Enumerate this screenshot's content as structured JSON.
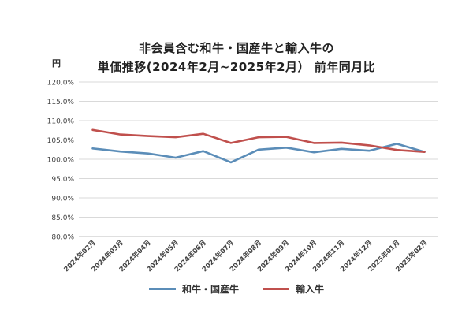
{
  "chart_data": {
    "type": "line",
    "title_lines": [
      "非会員含む和牛・国産牛と輸入牛の",
      "単価推移(2024年2月~2025年2月） 前年同月比"
    ],
    "unit_label": "円",
    "categories": [
      "2024年02月",
      "2024年03月",
      "2024年04月",
      "2024年05月",
      "2024年06月",
      "2024年07月",
      "2024年08月",
      "2024年09月",
      "2024年10月",
      "2024年11月",
      "2024年12月",
      "2025年01月",
      "2025年02月"
    ],
    "y_ticks": [
      "80.0%",
      "85.0%",
      "90.0%",
      "95.0%",
      "100.0%",
      "105.0%",
      "110.0%",
      "115.0%",
      "120.0%"
    ],
    "ylim": [
      80,
      120
    ],
    "grid": true,
    "legend_position": "bottom",
    "series": [
      {
        "name": "和牛・国産牛",
        "color": "#5b8db8",
        "values": [
          102.8,
          102.0,
          101.5,
          100.4,
          102.1,
          99.2,
          102.5,
          103.0,
          101.8,
          102.7,
          102.2,
          104.0,
          101.9
        ]
      },
      {
        "name": "輸入牛",
        "color": "#c0504d",
        "values": [
          107.6,
          106.4,
          106.0,
          105.7,
          106.6,
          104.2,
          105.7,
          105.8,
          104.2,
          104.3,
          103.6,
          102.4,
          101.9
        ]
      }
    ]
  }
}
